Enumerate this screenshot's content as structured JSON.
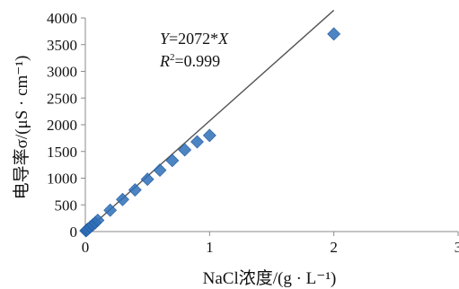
{
  "chart_data": {
    "type": "scatter",
    "title": "",
    "xlabel": "NaCl浓度/(g · L⁻¹)",
    "ylabel": "电导率σ/(μS · cm⁻¹)",
    "xlim": [
      0,
      3
    ],
    "ylim": [
      0,
      4000
    ],
    "x_ticks": [
      "0",
      "1",
      "2",
      "3"
    ],
    "y_ticks": [
      "0",
      "500",
      "1000",
      "1500",
      "2000",
      "2500",
      "3000",
      "3500",
      "4000"
    ],
    "grid": false,
    "legend": "none",
    "marker_color": "#2e6fb7",
    "line_color": "#555555",
    "series": [
      {
        "x": [
          0.005,
          0.01,
          0.02,
          0.04,
          0.06,
          0.08,
          0.1,
          0.2,
          0.3,
          0.4,
          0.5,
          0.6,
          0.7,
          0.8,
          0.9,
          1.0,
          2.0
        ],
        "y": [
          15,
          25,
          45,
          85,
          125,
          165,
          210,
          400,
          600,
          780,
          980,
          1150,
          1330,
          1530,
          1680,
          1800,
          3700
        ]
      }
    ],
    "fit": {
      "slope": 2072,
      "x_range": [
        0,
        2.0
      ],
      "equation": {
        "lhs": "Y",
        "eq": "=2072*",
        "rhs": "X"
      },
      "r2": {
        "base": "R",
        "sup": "2",
        "value": "=0.999"
      }
    }
  }
}
